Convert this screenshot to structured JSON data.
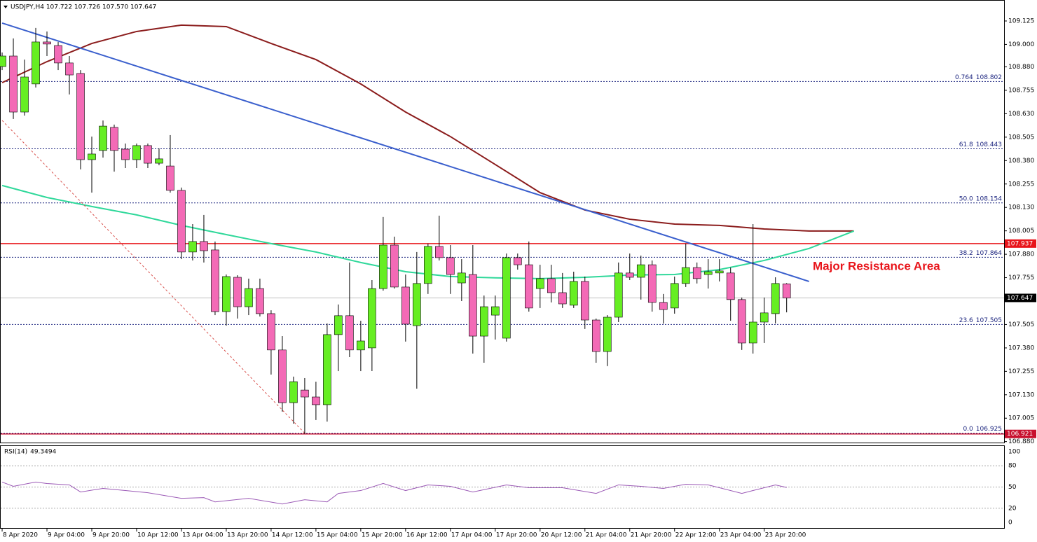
{
  "chart_data": {
    "type": "candlestick",
    "title": "USDJPY,H4  107.722 107.726 107.570 107.647",
    "annotation": "Major Resistance Area",
    "up_color": "#66ee22",
    "down_color": "#f36ab6",
    "xlim": [
      -0.19,
      89.4
    ],
    "ylim": [
      106.875,
      109.237
    ],
    "xticks": [
      {
        "value": 0,
        "label": "8 Apr 2020"
      },
      {
        "value": 4,
        "label": "9 Apr 04:00"
      },
      {
        "value": 8,
        "label": "9 Apr 20:00"
      },
      {
        "value": 12,
        "label": "10 Apr 12:00"
      },
      {
        "value": 16,
        "label": "13 Apr 04:00"
      },
      {
        "value": 20,
        "label": "13 Apr 20:00"
      },
      {
        "value": 24,
        "label": "14 Apr 12:00"
      },
      {
        "value": 28,
        "label": "15 Apr 04:00"
      },
      {
        "value": 32,
        "label": "15 Apr 20:00"
      },
      {
        "value": 36,
        "label": "16 Apr 12:00"
      },
      {
        "value": 40,
        "label": "17 Apr 04:00"
      },
      {
        "value": 44,
        "label": "17 Apr 20:00"
      },
      {
        "value": 48,
        "label": "20 Apr 12:00"
      },
      {
        "value": 52,
        "label": "21 Apr 04:00"
      },
      {
        "value": 56,
        "label": "21 Apr 20:00"
      },
      {
        "value": 60,
        "label": "22 Apr 12:00"
      },
      {
        "value": 64,
        "label": "23 Apr 04:00"
      },
      {
        "value": 68,
        "label": "23 Apr 20:00"
      }
    ],
    "yticks": [
      109.125,
      {
        "value": 109,
        "label": "109.000"
      },
      {
        "value": 108.88,
        "label": "108.880"
      },
      108.755,
      {
        "value": 108.63,
        "label": "108.630"
      },
      108.505,
      {
        "value": 108.38,
        "label": "108.380"
      },
      108.255,
      {
        "value": 108.13,
        "label": "108.130"
      },
      108.005,
      {
        "value": 107.88,
        "label": "107.880"
      },
      107.755,
      107.505,
      {
        "value": 107.38,
        "label": "107.380"
      },
      107.255,
      {
        "value": 107.13,
        "label": "107.130"
      },
      107.005,
      {
        "value": 106.88,
        "label": "106.880"
      }
    ],
    "candles": {
      "open": [
        108.882,
        108.938,
        108.639,
        108.789,
        109.013,
        108.994,
        108.901,
        108.845,
        108.385,
        108.434,
        108.557,
        108.441,
        108.385,
        108.46,
        108.366,
        108.351,
        108.221,
        107.892,
        107.948,
        107.903,
        107.574,
        107.757,
        107.6,
        107.697,
        107.563,
        107.369,
        107.088,
        107.155,
        107.118,
        107.077,
        107.451,
        107.552,
        107.369,
        107.38,
        107.697,
        107.929,
        107.705,
        107.499,
        107.724,
        107.922,
        107.862,
        107.727,
        107.772,
        107.443,
        107.555,
        107.432,
        107.862,
        107.824,
        107.697,
        107.75,
        107.675,
        107.608,
        107.735,
        107.529,
        107.361,
        107.544,
        107.78,
        107.757,
        107.824,
        107.623,
        107.593,
        107.724,
        107.809,
        107.772,
        107.78,
        107.78,
        107.638,
        107.406,
        107.518,
        107.563,
        107.722
      ],
      "high": [
        108.957,
        109.032,
        108.919,
        109.088,
        109.069,
        109.013,
        108.938,
        108.863,
        108.508,
        108.594,
        108.572,
        108.471,
        108.471,
        108.471,
        108.445,
        108.516,
        108.236,
        108.041,
        108.09,
        107.948,
        107.772,
        107.768,
        107.75,
        107.75,
        107.581,
        107.443,
        107.227,
        107.219,
        107.2,
        107.511,
        107.612,
        107.836,
        107.525,
        107.742,
        108.079,
        107.974,
        107.772,
        107.892,
        107.937,
        108.086,
        107.929,
        107.854,
        107.929,
        107.66,
        107.66,
        107.884,
        107.884,
        107.948,
        107.824,
        107.824,
        107.78,
        107.787,
        107.761,
        107.537,
        107.555,
        107.836,
        107.884,
        107.873,
        107.847,
        107.668,
        107.761,
        107.937,
        107.836,
        107.854,
        107.854,
        107.809,
        107.649,
        108.041,
        107.649,
        107.757,
        107.726
      ],
      "low": [
        108.863,
        108.602,
        108.62,
        108.77,
        108.938,
        108.863,
        108.733,
        108.333,
        108.209,
        108.396,
        108.321,
        108.34,
        108.34,
        108.34,
        108.355,
        108.209,
        107.854,
        107.847,
        107.836,
        107.555,
        107.499,
        107.537,
        107.555,
        107.548,
        107.238,
        107.04,
        106.976,
        106.921,
        106.995,
        106.987,
        107.256,
        107.331,
        107.256,
        107.256,
        107.686,
        107.697,
        107.414,
        107.163,
        107.668,
        107.847,
        107.668,
        107.63,
        107.35,
        107.301,
        107.425,
        107.414,
        107.798,
        107.574,
        107.593,
        107.623,
        107.593,
        107.593,
        107.481,
        107.301,
        107.283,
        107.518,
        107.742,
        107.638,
        107.574,
        107.51,
        107.563,
        107.705,
        107.724,
        107.697,
        107.735,
        107.525,
        107.369,
        107.35,
        107.406,
        107.511,
        107.57
      ],
      "close": [
        108.938,
        108.639,
        108.826,
        109.013,
        109.002,
        108.901,
        108.837,
        108.385,
        108.415,
        108.564,
        108.434,
        108.385,
        108.46,
        108.366,
        108.389,
        108.221,
        107.892,
        107.948,
        107.899,
        107.574,
        107.761,
        107.6,
        107.697,
        107.563,
        107.369,
        107.088,
        107.2,
        107.118,
        107.077,
        107.451,
        107.552,
        107.369,
        107.417,
        107.697,
        107.929,
        107.705,
        107.507,
        107.724,
        107.922,
        107.862,
        107.772,
        107.78,
        107.443,
        107.6,
        107.6,
        107.862,
        107.824,
        107.593,
        107.75,
        107.675,
        107.615,
        107.735,
        107.529,
        107.361,
        107.544,
        107.78,
        107.757,
        107.824,
        107.623,
        107.585,
        107.724,
        107.809,
        107.75,
        107.787,
        107.791,
        107.638,
        107.406,
        107.518,
        107.567,
        107.724,
        107.647
      ]
    },
    "overlays": [
      {
        "color": "#8b1c1c",
        "x": [
          0,
          4,
          8,
          12,
          16,
          20,
          24,
          28,
          32,
          36,
          40,
          44,
          48,
          52,
          56,
          60,
          64,
          68,
          72,
          76
        ],
        "values": [
          108.796,
          108.908,
          109.005,
          109.069,
          109.103,
          109.095,
          109.005,
          108.919,
          108.789,
          108.639,
          108.508,
          108.359,
          108.209,
          108.116,
          108.067,
          108.041,
          108.034,
          108.015,
          108.004,
          108.004
        ]
      },
      {
        "color": "#2fd89a",
        "x": [
          0,
          4,
          8,
          12,
          16,
          20,
          24,
          28,
          32,
          36,
          40,
          44,
          48,
          52,
          56,
          60,
          64,
          68,
          72,
          76
        ],
        "values": [
          108.247,
          108.183,
          108.135,
          108.09,
          108.034,
          107.985,
          107.937,
          107.892,
          107.836,
          107.787,
          107.761,
          107.754,
          107.75,
          107.757,
          107.769,
          107.772,
          107.798,
          107.847,
          107.911,
          108.004
        ]
      },
      {
        "color": "#3a5fcd",
        "x": [
          0,
          72
        ],
        "values": [
          109.114,
          107.735
        ]
      },
      {
        "color": "#d9534f",
        "dashed": true,
        "x": [
          0,
          27
        ],
        "values": [
          108.594,
          106.925
        ]
      }
    ],
    "hlines": [
      {
        "value": 107.937,
        "color": "#e8141a"
      },
      {
        "value": 106.921,
        "color": "#c8102e"
      }
    ],
    "fib_levels": [
      {
        "ratio": "0.764",
        "value": 108.802
      },
      {
        "ratio": "61.8",
        "value": 108.443
      },
      {
        "ratio": "50.0",
        "value": 108.154
      },
      {
        "ratio": "38.2",
        "value": 107.864
      },
      {
        "ratio": "23.6",
        "value": 107.505
      },
      {
        "ratio": "0.0",
        "value": 106.925
      }
    ],
    "rsi": {
      "label": "RSI(14)",
      "color": "#9b59b6",
      "ylim": [
        -8.9,
        107.9
      ],
      "yticks": [
        0,
        20,
        50,
        80,
        100
      ],
      "x": [
        0,
        1,
        3,
        4,
        6,
        7,
        9,
        11,
        13,
        16,
        18,
        19,
        22,
        25,
        27,
        29,
        30,
        32,
        34,
        36,
        38,
        40,
        42,
        45,
        47,
        50,
        53,
        55,
        57,
        59,
        61,
        63,
        66,
        67,
        69,
        70
      ],
      "values": [
        57,
        51,
        57,
        55,
        53,
        43,
        48,
        45,
        42,
        34,
        35,
        29,
        34,
        26,
        32,
        29,
        41,
        45,
        55,
        45,
        53,
        51,
        43,
        53,
        49,
        49,
        41,
        53,
        51,
        48,
        54,
        53,
        41,
        45,
        53,
        49.3494
      ]
    }
  }
}
